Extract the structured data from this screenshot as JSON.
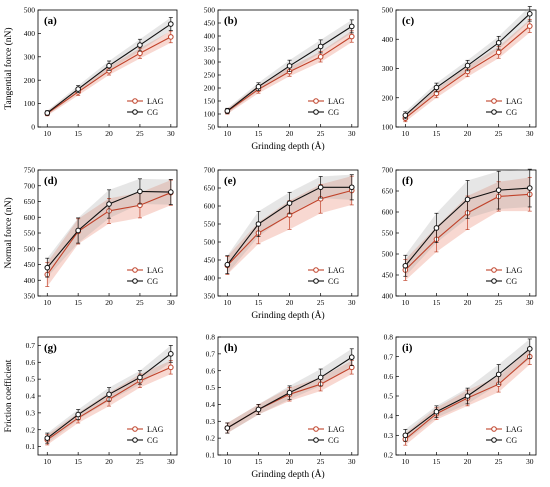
{
  "colors": {
    "LAG": "#c0432b",
    "CG": "#111111",
    "LAG_band": "#f2b8ab",
    "CG_band": "#9a9a9a"
  },
  "xlabel": "Grinding depth (Å)",
  "row_ylabels": [
    "Tangential force (nN)",
    "Normal force (nN)",
    "Friction coefficient"
  ],
  "chart_data": [
    {
      "type": "line",
      "panel_label": "(a)",
      "x": [
        10,
        15,
        20,
        25,
        30
      ],
      "xticks": [
        10,
        15,
        20,
        25,
        30
      ],
      "ylim": [
        0,
        500
      ],
      "yticks": [
        0,
        100,
        200,
        300,
        400,
        500
      ],
      "legend": "bottom-right",
      "series": [
        {
          "name": "LAG",
          "values": [
            58,
            150,
            240,
            315,
            385
          ],
          "errors": [
            10,
            15,
            18,
            22,
            25
          ]
        },
        {
          "name": "CG",
          "values": [
            60,
            162,
            262,
            350,
            440
          ],
          "errors": [
            10,
            15,
            20,
            25,
            28
          ]
        }
      ]
    },
    {
      "type": "line",
      "panel_label": "(b)",
      "x": [
        10,
        15,
        20,
        25,
        30
      ],
      "xticks": [
        10,
        15,
        20,
        25,
        30
      ],
      "ylim": [
        50,
        500
      ],
      "yticks": [
        50,
        100,
        150,
        200,
        250,
        300,
        350,
        400,
        450,
        500
      ],
      "legend": "bottom-right",
      "series": [
        {
          "name": "LAG",
          "values": [
            110,
            195,
            263,
            320,
            398
          ],
          "errors": [
            10,
            15,
            18,
            20,
            22
          ]
        },
        {
          "name": "CG",
          "values": [
            112,
            205,
            285,
            360,
            437
          ],
          "errors": [
            10,
            15,
            22,
            25,
            25
          ]
        }
      ]
    },
    {
      "type": "line",
      "panel_label": "(c)",
      "x": [
        10,
        15,
        20,
        25,
        30
      ],
      "xticks": [
        10,
        15,
        20,
        25,
        30
      ],
      "ylim": [
        100,
        500
      ],
      "yticks": [
        100,
        200,
        300,
        400,
        500
      ],
      "legend": "bottom-right",
      "series": [
        {
          "name": "LAG",
          "values": [
            130,
            215,
            290,
            355,
            445
          ],
          "errors": [
            12,
            15,
            18,
            20,
            22
          ]
        },
        {
          "name": "CG",
          "values": [
            140,
            235,
            310,
            388,
            487
          ],
          "errors": [
            12,
            15,
            18,
            22,
            25
          ]
        }
      ]
    },
    {
      "type": "line",
      "panel_label": "(d)",
      "x": [
        10,
        15,
        20,
        25,
        30
      ],
      "xticks": [
        10,
        15,
        20,
        25,
        30
      ],
      "ylim": [
        350,
        750
      ],
      "yticks": [
        350,
        400,
        450,
        500,
        550,
        600,
        650,
        700,
        750
      ],
      "legend": "bottom-right",
      "series": [
        {
          "name": "LAG",
          "values": [
            418,
            555,
            620,
            638,
            678
          ],
          "errors": [
            38,
            40,
            40,
            40,
            40
          ]
        },
        {
          "name": "CG",
          "values": [
            440,
            558,
            642,
            682,
            680
          ],
          "errors": [
            30,
            40,
            45,
            40,
            40
          ]
        }
      ]
    },
    {
      "type": "line",
      "panel_label": "(e)",
      "x": [
        10,
        15,
        20,
        25,
        30
      ],
      "xticks": [
        10,
        15,
        20,
        25,
        30
      ],
      "ylim": [
        350,
        700
      ],
      "yticks": [
        350,
        400,
        450,
        500,
        550,
        600,
        650,
        700
      ],
      "legend": "bottom-right",
      "series": [
        {
          "name": "LAG",
          "values": [
            435,
            525,
            575,
            620,
            643
          ],
          "errors": [
            25,
            30,
            40,
            40,
            40
          ]
        },
        {
          "name": "CG",
          "values": [
            437,
            550,
            608,
            652,
            652
          ],
          "errors": [
            25,
            35,
            30,
            30,
            35
          ]
        }
      ]
    },
    {
      "type": "line",
      "panel_label": "(f)",
      "x": [
        10,
        15,
        20,
        25,
        30
      ],
      "xticks": [
        10,
        15,
        20,
        25,
        30
      ],
      "ylim": [
        400,
        700
      ],
      "yticks": [
        400,
        450,
        500,
        550,
        600,
        650,
        700
      ],
      "legend": "bottom-right",
      "series": [
        {
          "name": "LAG",
          "values": [
            462,
            535,
            598,
            637,
            642
          ],
          "errors": [
            25,
            30,
            40,
            35,
            40
          ]
        },
        {
          "name": "CG",
          "values": [
            472,
            562,
            630,
            652,
            657
          ],
          "errors": [
            25,
            35,
            45,
            45,
            45
          ]
        }
      ]
    },
    {
      "type": "line",
      "panel_label": "(g)",
      "x": [
        10,
        15,
        20,
        25,
        30
      ],
      "xticks": [
        10,
        15,
        20,
        25,
        30
      ],
      "ylim": [
        0.05,
        0.75
      ],
      "yticks": [
        0.1,
        0.2,
        0.3,
        0.4,
        0.5,
        0.6,
        0.7
      ],
      "legend": "bottom-right",
      "series": [
        {
          "name": "LAG",
          "values": [
            0.14,
            0.27,
            0.38,
            0.49,
            0.57
          ],
          "errors": [
            0.03,
            0.03,
            0.04,
            0.04,
            0.04
          ]
        },
        {
          "name": "CG",
          "values": [
            0.15,
            0.29,
            0.41,
            0.51,
            0.65
          ],
          "errors": [
            0.03,
            0.03,
            0.04,
            0.04,
            0.05
          ]
        }
      ]
    },
    {
      "type": "line",
      "panel_label": "(h)",
      "x": [
        10,
        15,
        20,
        25,
        30
      ],
      "xticks": [
        10,
        15,
        20,
        25,
        30
      ],
      "ylim": [
        0.1,
        0.8
      ],
      "yticks": [
        0.1,
        0.2,
        0.3,
        0.4,
        0.5,
        0.6,
        0.7,
        0.8
      ],
      "legend": "bottom-right",
      "series": [
        {
          "name": "LAG",
          "values": [
            0.26,
            0.37,
            0.46,
            0.52,
            0.62
          ],
          "errors": [
            0.03,
            0.03,
            0.04,
            0.04,
            0.04
          ]
        },
        {
          "name": "CG",
          "values": [
            0.26,
            0.37,
            0.47,
            0.56,
            0.68
          ],
          "errors": [
            0.03,
            0.03,
            0.04,
            0.05,
            0.05
          ]
        }
      ]
    },
    {
      "type": "line",
      "panel_label": "(i)",
      "x": [
        10,
        15,
        20,
        25,
        30
      ],
      "xticks": [
        10,
        15,
        20,
        25,
        30
      ],
      "ylim": [
        0.2,
        0.8
      ],
      "yticks": [
        0.2,
        0.3,
        0.4,
        0.5,
        0.6,
        0.7,
        0.8
      ],
      "legend": "bottom-right",
      "series": [
        {
          "name": "LAG",
          "values": [
            0.28,
            0.41,
            0.49,
            0.56,
            0.7
          ],
          "errors": [
            0.03,
            0.03,
            0.04,
            0.04,
            0.04
          ]
        },
        {
          "name": "CG",
          "values": [
            0.3,
            0.42,
            0.5,
            0.61,
            0.74
          ],
          "errors": [
            0.03,
            0.03,
            0.04,
            0.05,
            0.05
          ]
        }
      ]
    }
  ]
}
